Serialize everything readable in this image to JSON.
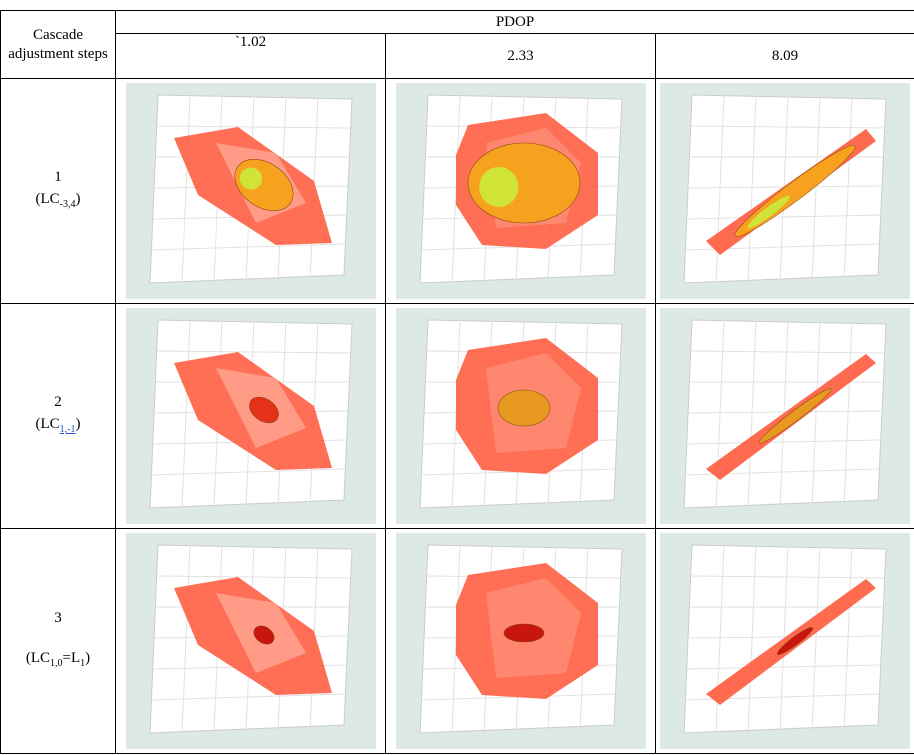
{
  "table": {
    "header": {
      "corner": "Cascade adjustment steps",
      "group": "PDOP",
      "columns": [
        "`1.02",
        "2.33",
        "8.09"
      ]
    },
    "rows": [
      {
        "step": "1",
        "label": [
          {
            "text": "(LC"
          },
          {
            "sub": "-3,4"
          },
          {
            "text": ")"
          }
        ]
      },
      {
        "step": "2",
        "label": [
          {
            "text": "(LC"
          },
          {
            "sub": "1,-1"
          },
          {
            "text": ")"
          }
        ]
      },
      {
        "step": "3",
        "label": [
          {
            "text": "(LC"
          },
          {
            "sub": "1,0"
          },
          {
            "text": "=L"
          },
          {
            "sub": "1"
          },
          {
            "text": ")"
          }
        ]
      }
    ]
  }
}
